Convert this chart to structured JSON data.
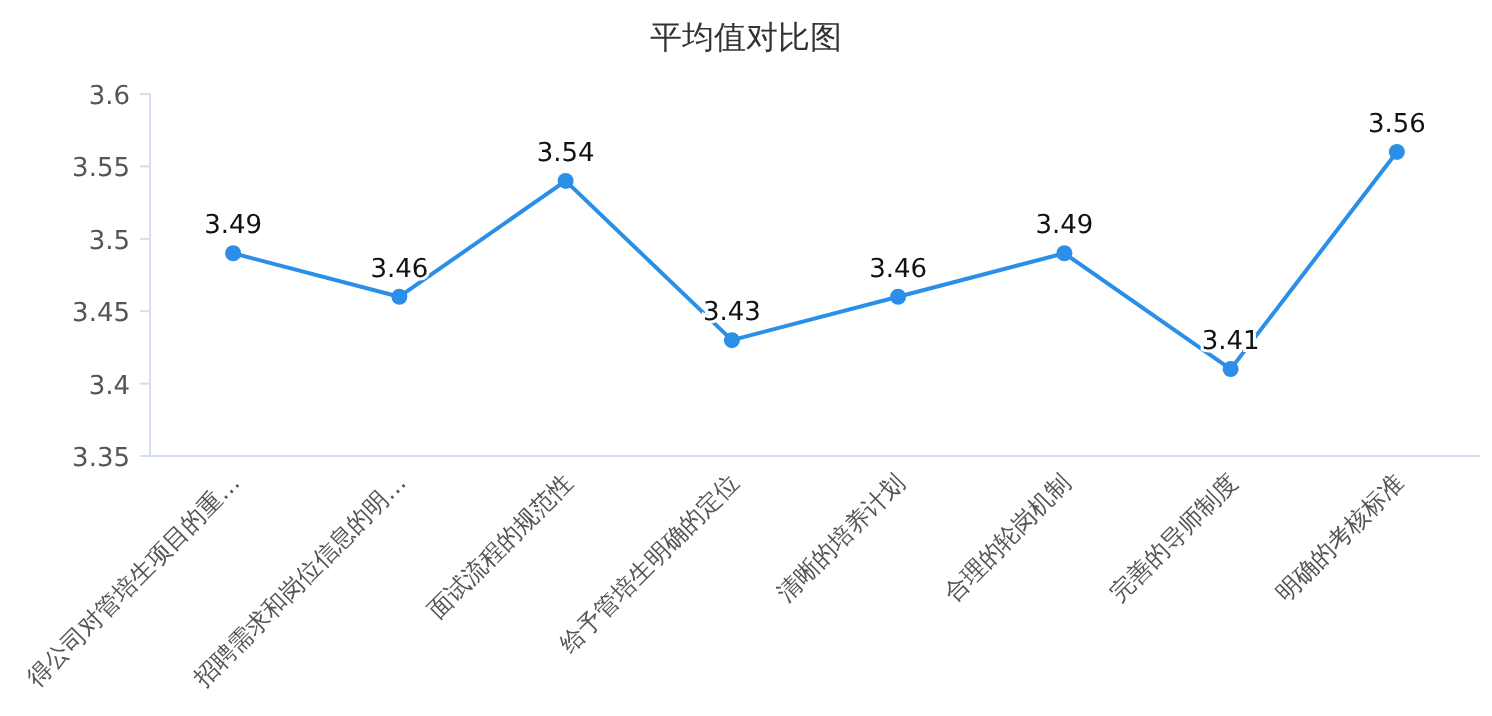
{
  "chart_data": {
    "type": "line",
    "title": "平均值对比图",
    "categories": [
      "得公司对管培生项目的重…",
      "招聘需求和岗位信息的明…",
      "面试流程的规范性",
      "给予管培生明确的定位",
      "清晰的培养计划",
      "合理的轮岗机制",
      "完善的导师制度",
      "明确的考核标准"
    ],
    "series": [
      {
        "color": "#2b8fe8",
        "values": [
          3.49,
          3.46,
          3.54,
          3.43,
          3.46,
          3.49,
          3.41,
          3.56
        ]
      }
    ],
    "ylim": [
      3.35,
      3.6
    ],
    "yticks": [
      3.35,
      3.4,
      3.45,
      3.5,
      3.55,
      3.6
    ],
    "data_labels": true,
    "grid": false,
    "marker": "circle",
    "line_style": "solid"
  }
}
